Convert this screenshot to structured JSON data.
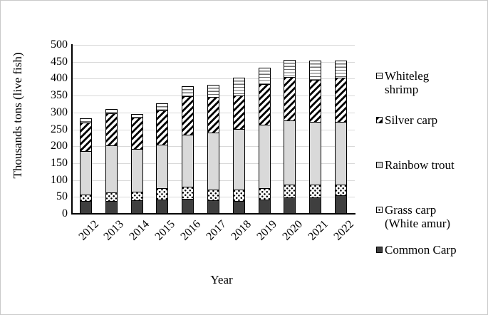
{
  "figure": {
    "y_axis_title": "Thousands tons (live fish)",
    "x_axis_title": "Year"
  },
  "chart_data": {
    "type": "bar",
    "stacked": true,
    "title": "",
    "xlabel": "Year",
    "ylabel": "Thousands tons (live fish)",
    "ylim": [
      0,
      500
    ],
    "ytick_step": 50,
    "grid": "horizontal",
    "legend_position": "right",
    "categories": [
      "2012",
      "2013",
      "2014",
      "2015",
      "2016",
      "2017",
      "2018",
      "2019",
      "2020",
      "2021",
      "2022"
    ],
    "series": [
      {
        "name": "Common Carp",
        "pattern": "solid-dark",
        "values": [
          35,
          35,
          38,
          41,
          43,
          38,
          36,
          41,
          47,
          47,
          52
        ]
      },
      {
        "name": "Grass carp (White amur)",
        "pattern": "dots",
        "values": [
          20,
          27,
          25,
          32,
          34,
          31,
          34,
          33,
          38,
          38,
          33
        ]
      },
      {
        "name": "Rainbow trout",
        "pattern": "solid-light",
        "values": [
          128,
          138,
          126,
          129,
          156,
          169,
          179,
          187,
          190,
          185,
          186
        ]
      },
      {
        "name": "Silver carp",
        "pattern": "diagonal",
        "values": [
          85,
          96,
          94,
          101,
          114,
          106,
          99,
          121,
          129,
          124,
          129
        ]
      },
      {
        "name": "Whiteleg shrimp",
        "pattern": "hlines",
        "values": [
          15,
          14,
          13,
          25,
          30,
          37,
          54,
          50,
          51,
          60,
          54
        ]
      }
    ],
    "totals": [
      283,
      310,
      296,
      328,
      377,
      381,
      402,
      432,
      455,
      454,
      454
    ],
    "legend": [
      {
        "label": "Whiteleg\nshrimp",
        "pattern": "hlines"
      },
      {
        "label": "Silver carp",
        "pattern": "diagonal"
      },
      {
        "label": "Rainbow trout",
        "pattern": "solid-light"
      },
      {
        "label": "Grass carp\n(White amur)",
        "pattern": "dots"
      },
      {
        "label": "Common Carp",
        "pattern": "solid-dark"
      }
    ],
    "colors": {
      "dark_fill": "#3f3f3f",
      "light_fill": "#d9d9d9",
      "gridline": "#d9d9d9",
      "axis": "#000000"
    }
  }
}
